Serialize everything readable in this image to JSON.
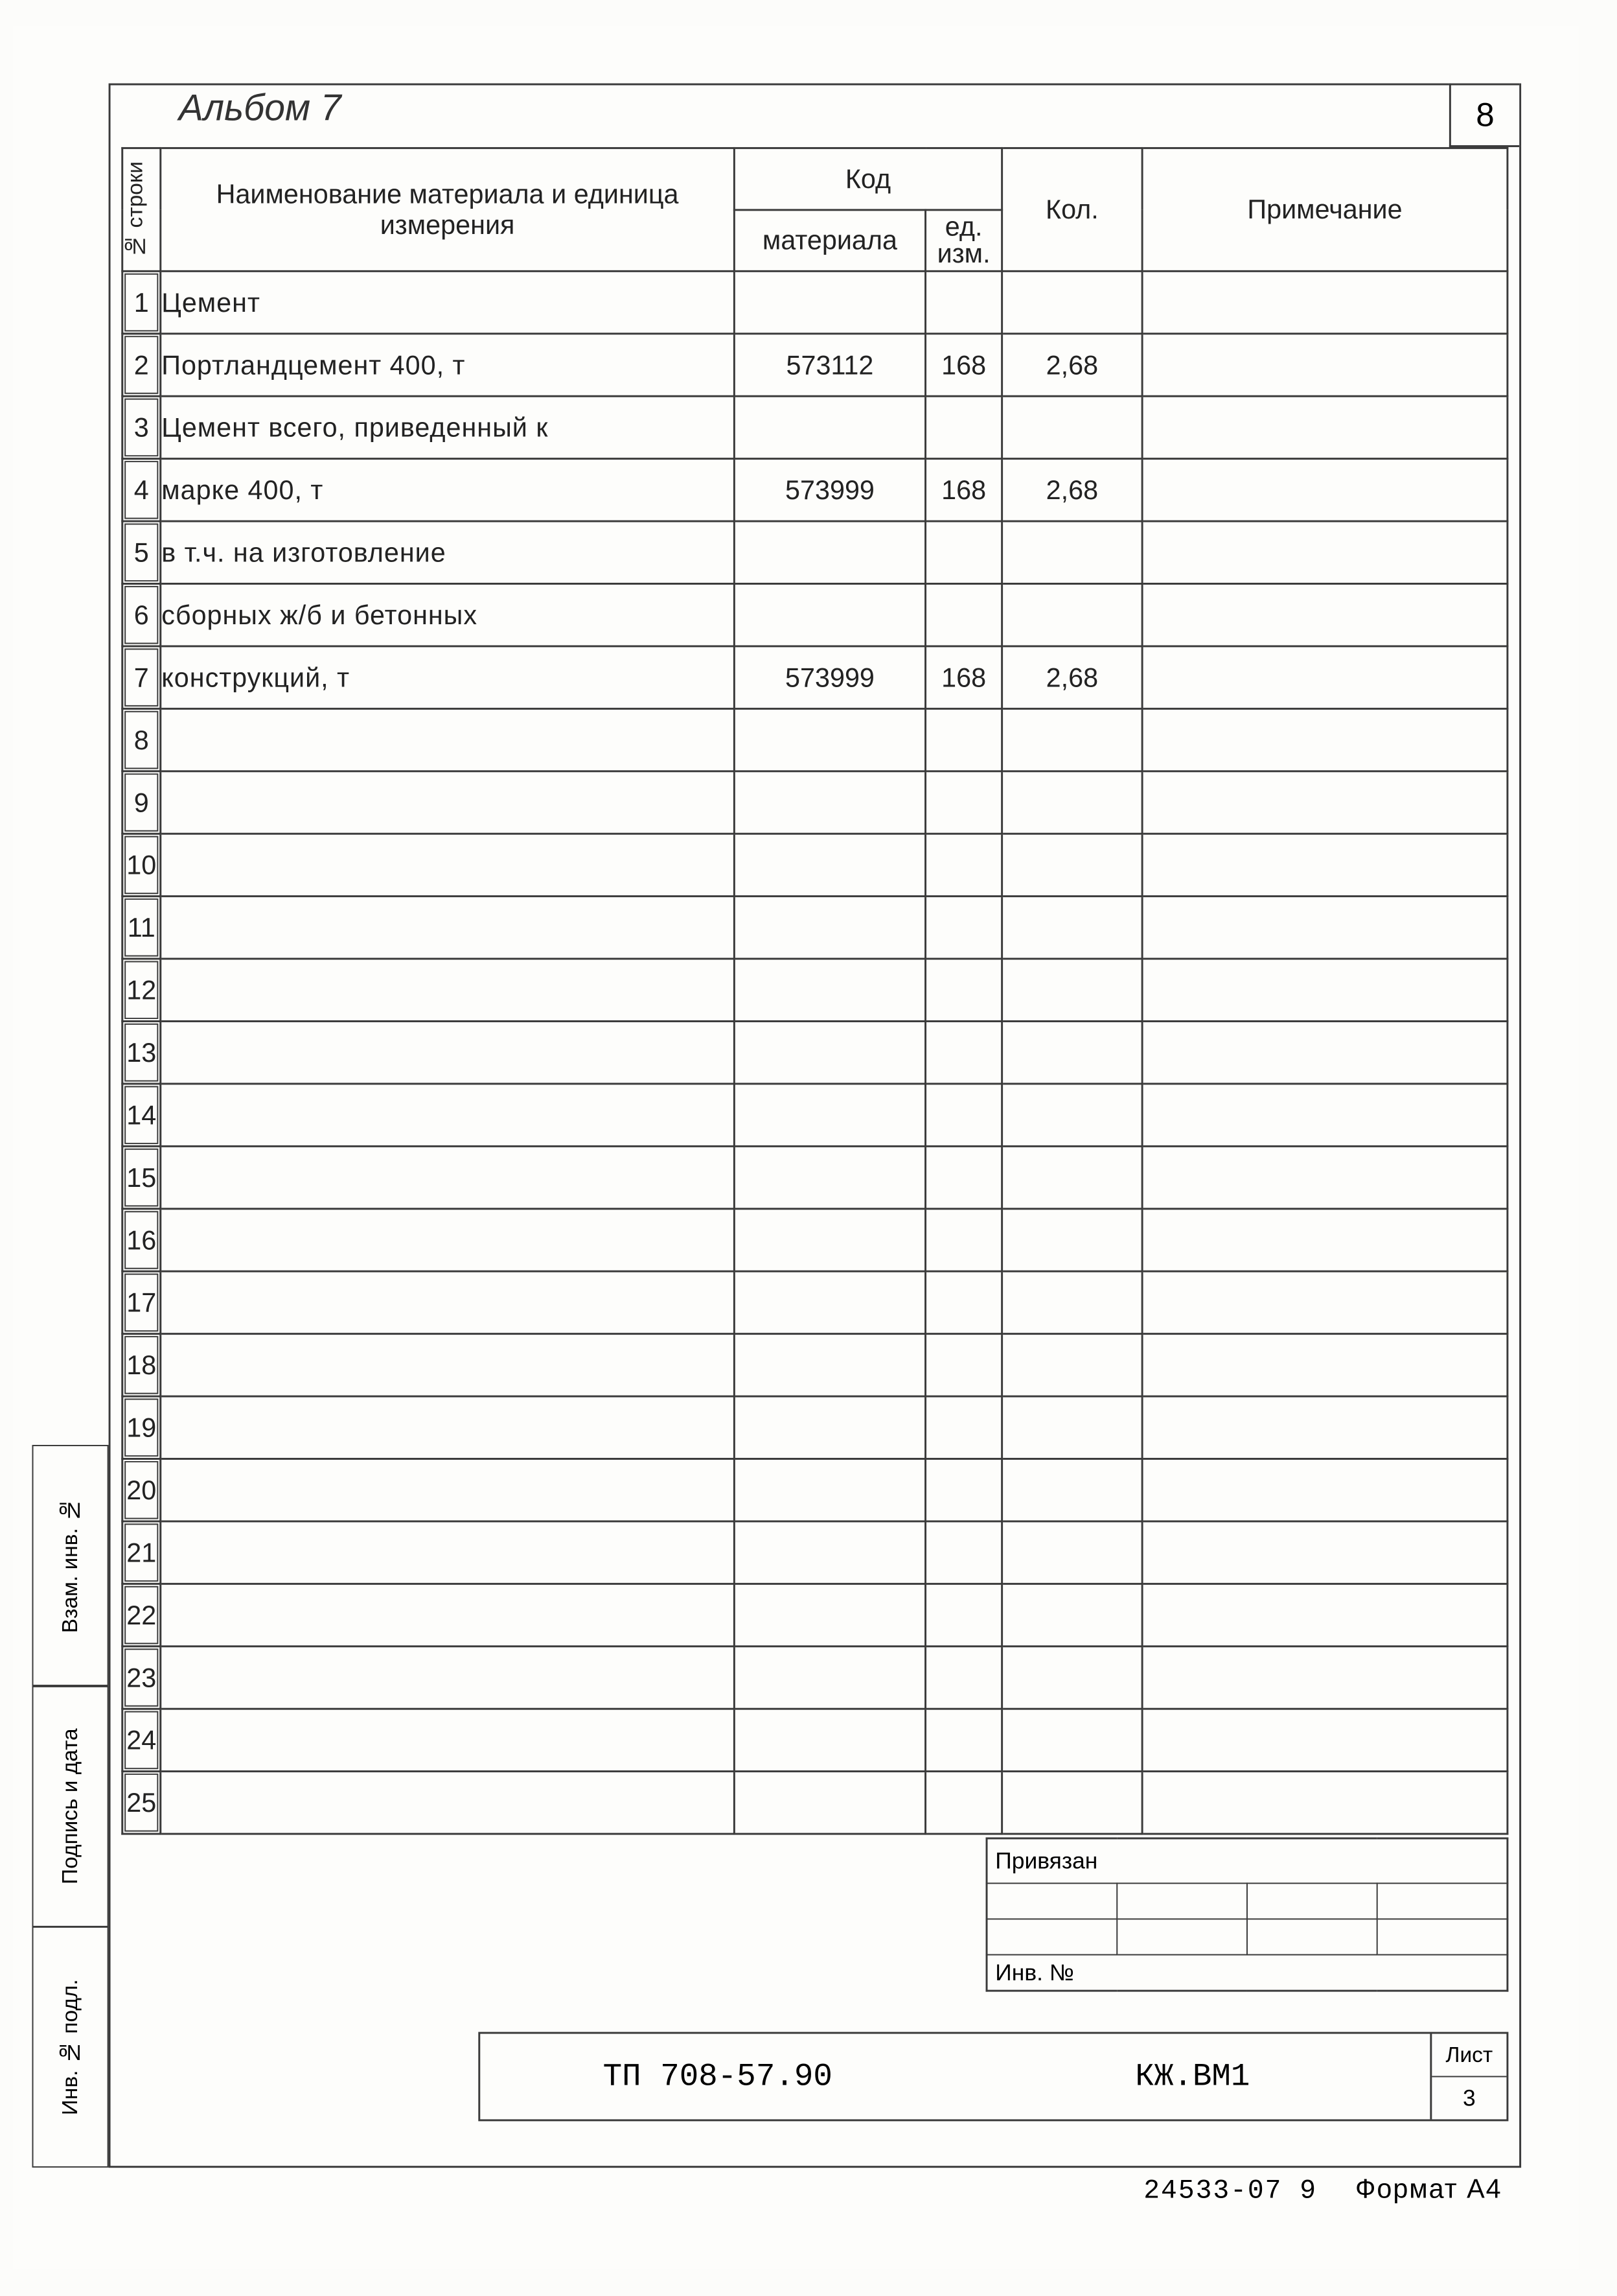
{
  "page_number": "8",
  "album_title": "Альбом 7",
  "table": {
    "headers": {
      "row_label": "№ строки",
      "name": "Наименование материала  и единица измерения",
      "code_group": "Код",
      "code_material": "материала",
      "code_unit": "ед. изм.",
      "qty": "Кол.",
      "note": "Примечание"
    },
    "rows": [
      {
        "n": "1",
        "name": "Цемент",
        "code": "",
        "unit": "",
        "qty": "",
        "note": ""
      },
      {
        "n": "2",
        "name": "Портландцемент 400, т",
        "code": "573112",
        "unit": "168",
        "qty": "2,68",
        "note": ""
      },
      {
        "n": "3",
        "name": "Цемент всего, приведенный к",
        "code": "",
        "unit": "",
        "qty": "",
        "note": ""
      },
      {
        "n": "4",
        "name": "марке 400, т",
        "code": "573999",
        "unit": "168",
        "qty": "2,68",
        "note": ""
      },
      {
        "n": "5",
        "name": "в т.ч. на изготовление",
        "code": "",
        "unit": "",
        "qty": "",
        "note": ""
      },
      {
        "n": "6",
        "name": "сборных ж/б и бетонных",
        "code": "",
        "unit": "",
        "qty": "",
        "note": ""
      },
      {
        "n": "7",
        "name": "конструкций, т",
        "code": "573999",
        "unit": "168",
        "qty": "2,68",
        "note": ""
      },
      {
        "n": "8",
        "name": "",
        "code": "",
        "unit": "",
        "qty": "",
        "note": ""
      },
      {
        "n": "9",
        "name": "",
        "code": "",
        "unit": "",
        "qty": "",
        "note": ""
      },
      {
        "n": "10",
        "name": "",
        "code": "",
        "unit": "",
        "qty": "",
        "note": ""
      },
      {
        "n": "11",
        "name": "",
        "code": "",
        "unit": "",
        "qty": "",
        "note": ""
      },
      {
        "n": "12",
        "name": "",
        "code": "",
        "unit": "",
        "qty": "",
        "note": ""
      },
      {
        "n": "13",
        "name": "",
        "code": "",
        "unit": "",
        "qty": "",
        "note": ""
      },
      {
        "n": "14",
        "name": "",
        "code": "",
        "unit": "",
        "qty": "",
        "note": ""
      },
      {
        "n": "15",
        "name": "",
        "code": "",
        "unit": "",
        "qty": "",
        "note": ""
      },
      {
        "n": "16",
        "name": "",
        "code": "",
        "unit": "",
        "qty": "",
        "note": ""
      },
      {
        "n": "17",
        "name": "",
        "code": "",
        "unit": "",
        "qty": "",
        "note": ""
      },
      {
        "n": "18",
        "name": "",
        "code": "",
        "unit": "",
        "qty": "",
        "note": ""
      },
      {
        "n": "19",
        "name": "",
        "code": "",
        "unit": "",
        "qty": "",
        "note": ""
      },
      {
        "n": "20",
        "name": "",
        "code": "",
        "unit": "",
        "qty": "",
        "note": ""
      },
      {
        "n": "21",
        "name": "",
        "code": "",
        "unit": "",
        "qty": "",
        "note": ""
      },
      {
        "n": "22",
        "name": "",
        "code": "",
        "unit": "",
        "qty": "",
        "note": ""
      },
      {
        "n": "23",
        "name": "",
        "code": "",
        "unit": "",
        "qty": "",
        "note": ""
      },
      {
        "n": "24",
        "name": "",
        "code": "",
        "unit": "",
        "qty": "",
        "note": ""
      },
      {
        "n": "25",
        "name": "",
        "code": "",
        "unit": "",
        "qty": "",
        "note": ""
      }
    ]
  },
  "side_labels": {
    "a": "Взам. инв. №",
    "b": "Подпись и дата",
    "c": "Инв. № подл."
  },
  "bottom": {
    "priv_label": "Привязан",
    "inv_label": "Инв. №",
    "doc_code": "ТП 708-57.90",
    "doc_series": "КЖ.ВМ1",
    "sheet_label": "Лист",
    "sheet_num": "3"
  },
  "footer": {
    "serial": "24533-07   9",
    "format": "Формат А4"
  }
}
